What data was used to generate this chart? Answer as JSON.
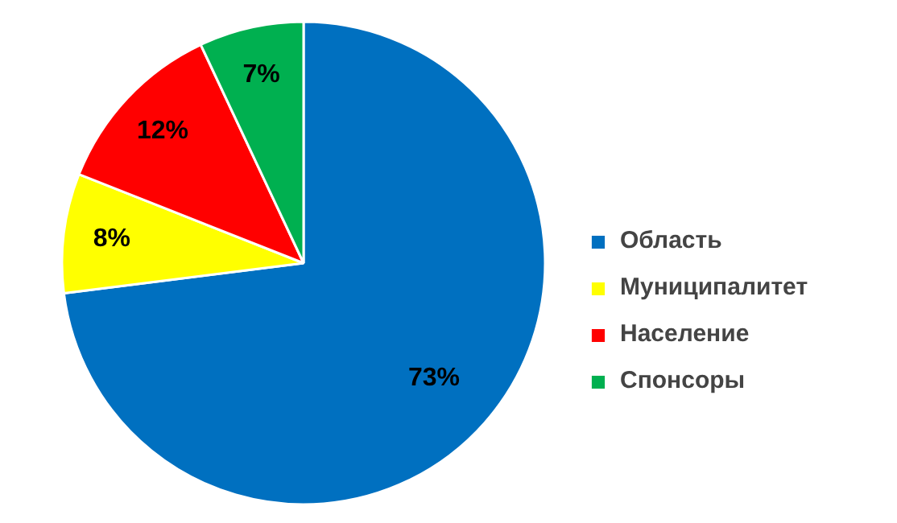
{
  "chart_data": {
    "type": "pie",
    "categories": [
      "Область",
      "Муниципалитет",
      "Население",
      "Спонсоры"
    ],
    "values": [
      73,
      8,
      12,
      7
    ],
    "colors": [
      "#0070c0",
      "#ffff00",
      "#ff0000",
      "#00b050"
    ],
    "value_labels": [
      "73%",
      "8%",
      "12%",
      "7%"
    ],
    "legend": "right"
  }
}
